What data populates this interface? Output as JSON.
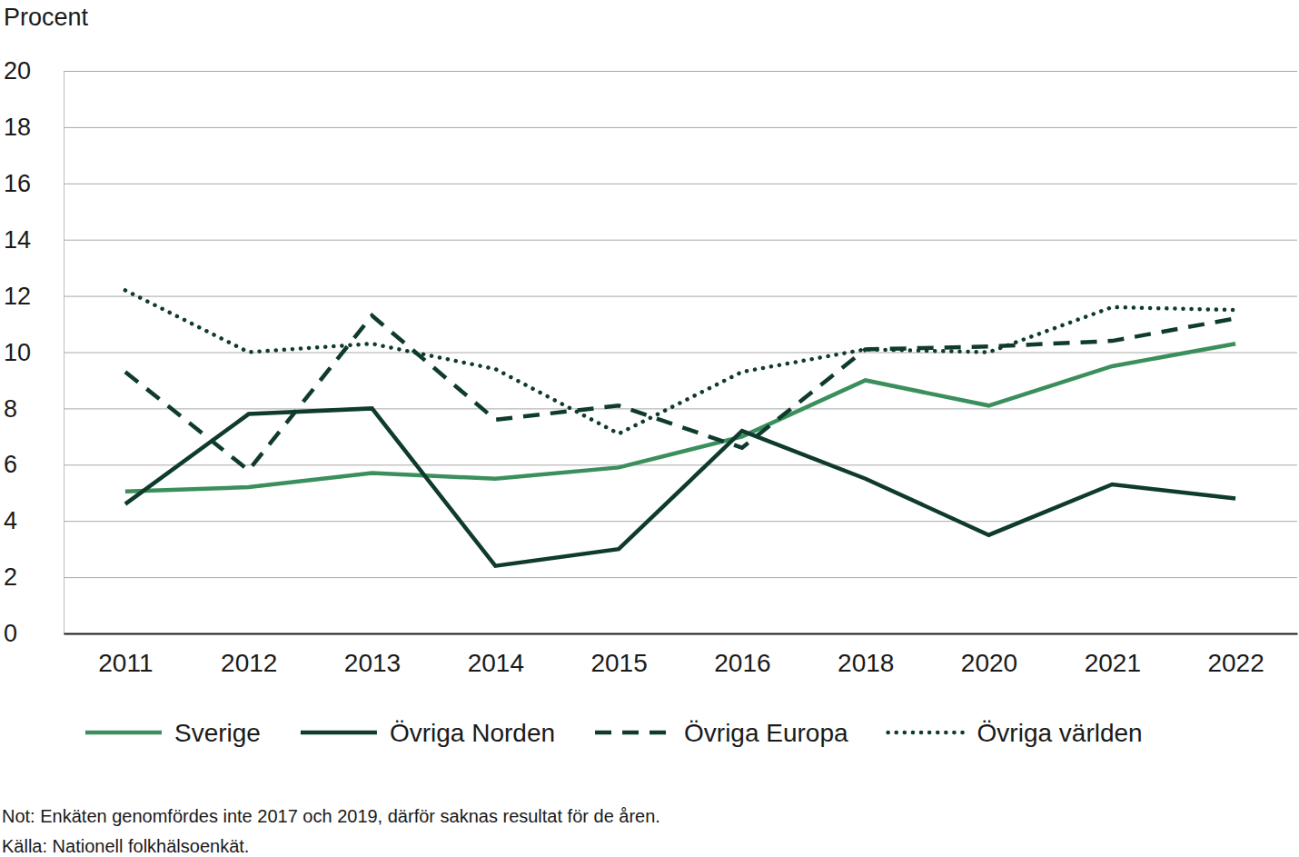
{
  "chart_data": {
    "type": "line",
    "y_label": "Procent",
    "categories": [
      "2011",
      "2012",
      "2013",
      "2014",
      "2015",
      "2016",
      "2018",
      "2020",
      "2021",
      "2022"
    ],
    "series": [
      {
        "name": "Sverige",
        "color": "#3a8f5c",
        "line_style": "solid",
        "values": [
          5.05,
          5.2,
          5.7,
          5.5,
          5.9,
          7.0,
          9.0,
          8.1,
          9.5,
          10.3
        ]
      },
      {
        "name": "Övriga Norden",
        "color": "#0f3b2d",
        "line_style": "solid",
        "values": [
          4.6,
          7.8,
          8.0,
          2.4,
          3.0,
          7.2,
          5.5,
          3.5,
          5.3,
          4.8
        ]
      },
      {
        "name": "Övriga Europa",
        "color": "#0f3b2d",
        "line_style": "dashed",
        "values": [
          9.3,
          5.8,
          11.3,
          7.6,
          8.1,
          6.6,
          10.1,
          10.2,
          10.4,
          11.2
        ]
      },
      {
        "name": "Övriga världen",
        "color": "#0f3b2d",
        "line_style": "dotted",
        "values": [
          12.2,
          10.0,
          10.3,
          9.4,
          7.1,
          9.3,
          10.1,
          10.0,
          11.6,
          11.5
        ]
      }
    ],
    "ylim": [
      0,
      20
    ],
    "yticks": [
      0,
      2,
      4,
      6,
      8,
      10,
      12,
      14,
      16,
      18,
      20
    ],
    "grid": true,
    "legend": "bottom",
    "annotations": [
      "Not: Enkäten genomfördes inte 2017 och 2019, därför saknas resultat för de åren.",
      "Källa: Nationell folkhälsoenkät."
    ]
  }
}
